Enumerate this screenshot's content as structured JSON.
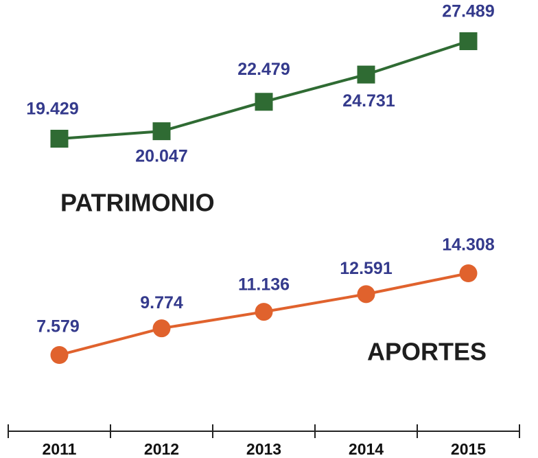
{
  "chart_data": {
    "type": "line",
    "categories": [
      "2011",
      "2012",
      "2013",
      "2014",
      "2015"
    ],
    "series": [
      {
        "name": "PATRIMONIO",
        "color": "#2f6b33",
        "marker": "square",
        "values": [
          19.429,
          20.047,
          22.479,
          24.731,
          27.489
        ]
      },
      {
        "name": "APORTES",
        "color": "#e0622d",
        "marker": "circle",
        "values": [
          7.579,
          9.774,
          11.136,
          12.591,
          14.308
        ]
      }
    ]
  }
}
